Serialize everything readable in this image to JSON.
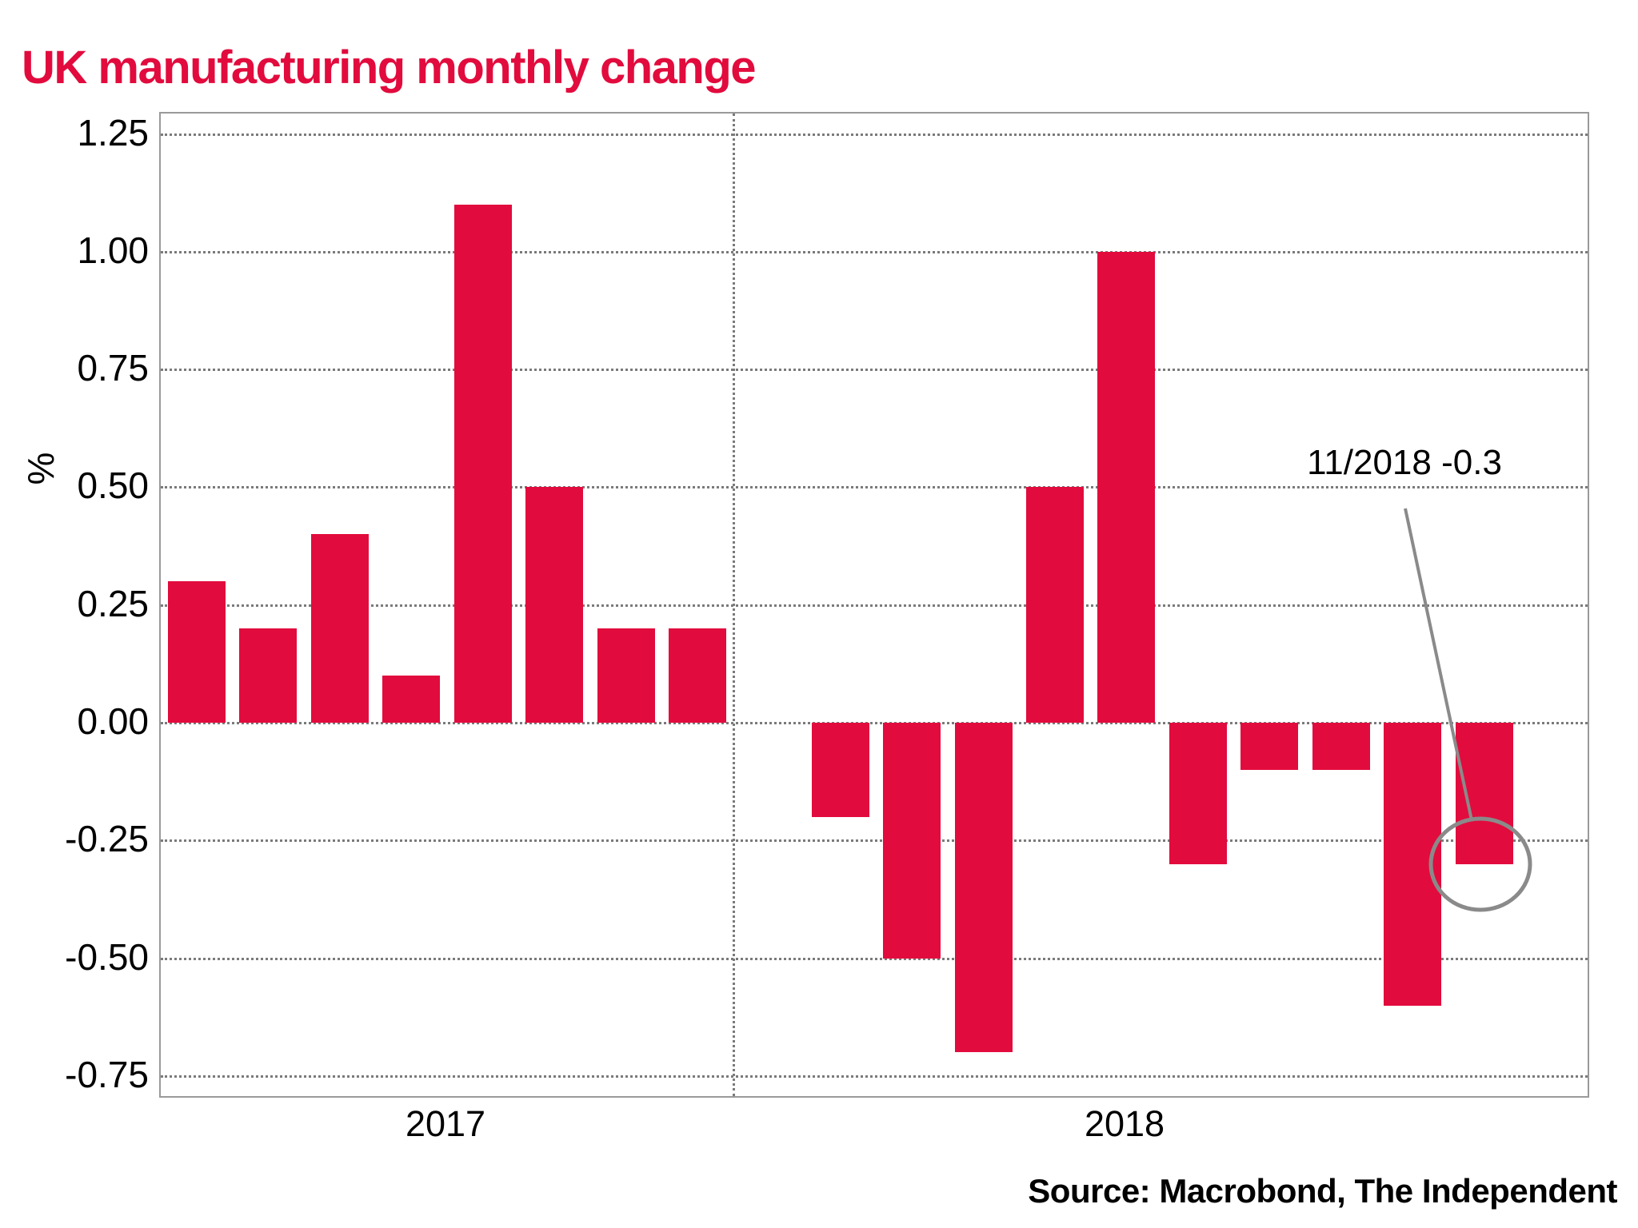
{
  "title": "UK manufacturing monthly change",
  "source": "Source: Macrobond, The Independent",
  "y_axis": {
    "label": "%",
    "ticks": [
      "1.25",
      "1.00",
      "0.75",
      "0.50",
      "0.25",
      "0.00",
      "-0.25",
      "-0.50",
      "-0.75"
    ]
  },
  "x_axis": {
    "year_labels": [
      "2017",
      "2018"
    ]
  },
  "annotation": {
    "text": "11/2018 -0.3"
  },
  "colors": {
    "bar": "#e20b3d",
    "title": "#e20b3d",
    "grid_dots": "#7a7a7a",
    "plot_border": "#9a9a9a",
    "annotation_line": "#8a8a8a",
    "text": "#000000"
  },
  "chart_data": {
    "type": "bar",
    "title": "UK manufacturing monthly change",
    "ylabel": "%",
    "unit": "percent month-on-month change",
    "ylim": [
      -0.8,
      1.3
    ],
    "y_tick_step": 0.25,
    "grid": "horizontal dotted lines at each 0.25 step",
    "year_separator": "vertical dotted line between 2017 and 2018 groups",
    "legend_position": "none",
    "groups": [
      {
        "year": "2017",
        "values": [
          0.3,
          0.2,
          0.4,
          0.1,
          1.1,
          0.5,
          0.2,
          0.2
        ]
      },
      {
        "year": "2018",
        "values": [
          0.0,
          -0.2,
          -0.5,
          -0.7,
          0.5,
          1.0,
          -0.3,
          -0.1,
          -0.1,
          -0.6,
          -0.3
        ]
      }
    ],
    "highlighted_point": {
      "label": "11/2018",
      "value": -0.3,
      "marker": "gray circle with leader line"
    }
  }
}
